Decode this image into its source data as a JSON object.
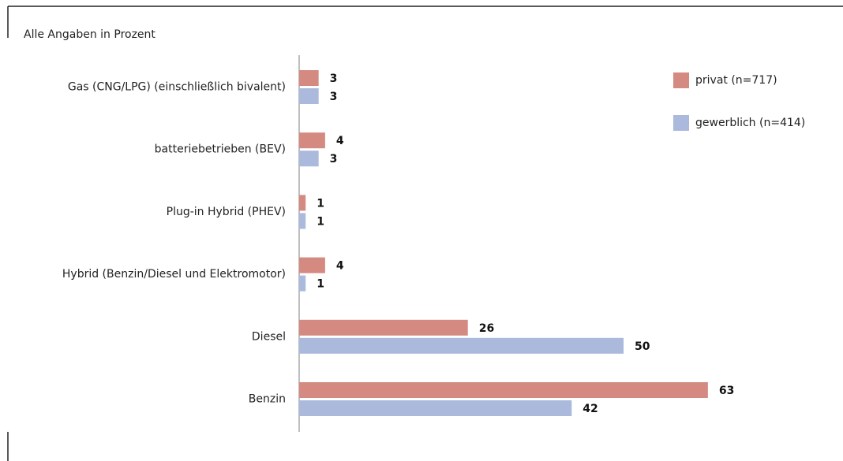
{
  "chart_data": {
    "type": "bar",
    "orientation": "horizontal",
    "subtitle": "Alle Angaben in Prozent",
    "categories": [
      "Gas (CNG/LPG) (einschließlich bivalent)",
      "batteriebetrieben (BEV)",
      "Plug-in Hybrid (PHEV)",
      "Hybrid (Benzin/Diesel und Elektromotor)",
      "Diesel",
      "Benzin"
    ],
    "series": [
      {
        "name": "privat (n=717)",
        "color": "#d48a80",
        "values": [
          3,
          4,
          1,
          4,
          26,
          63
        ]
      },
      {
        "name": "gewerblich (n=414)",
        "color": "#aab9dc",
        "values": [
          3,
          3,
          1,
          1,
          50,
          42
        ]
      }
    ],
    "legend": "top-right"
  }
}
